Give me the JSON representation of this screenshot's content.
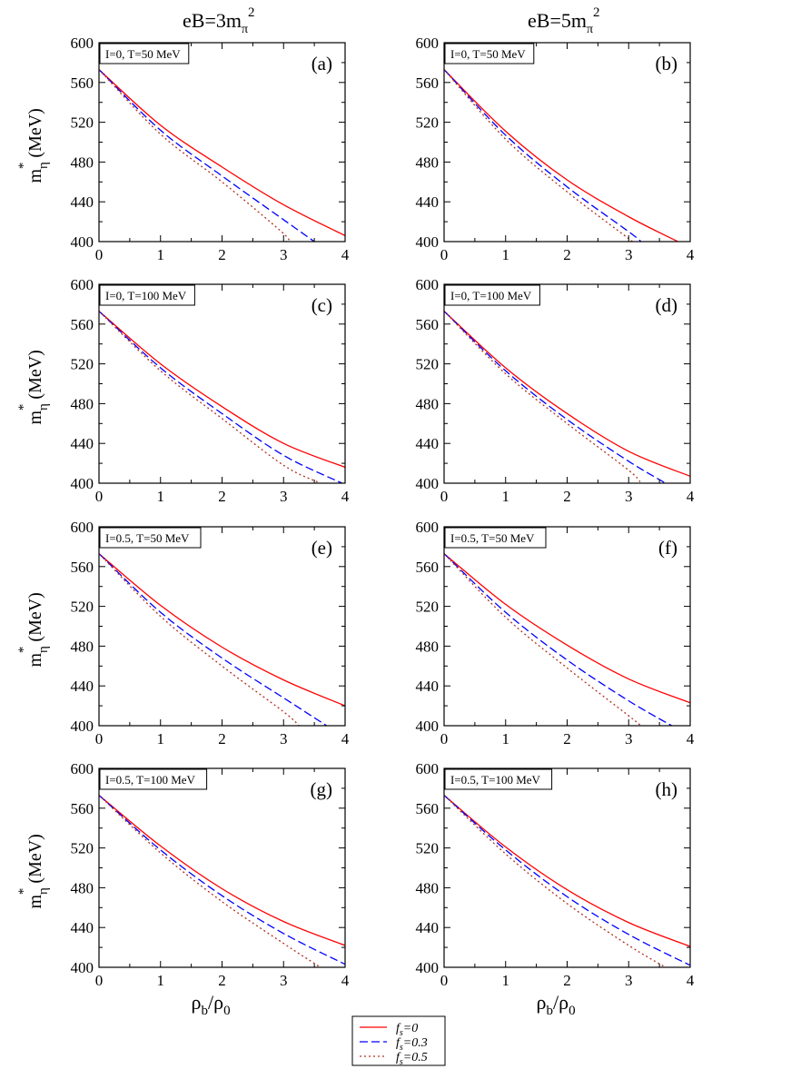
{
  "column_titles": [
    {
      "base": "eB=3m",
      "sub": "π",
      "sup": "2"
    },
    {
      "base": "eB=5m",
      "sub": "π",
      "sup": "2"
    }
  ],
  "ylabel": {
    "base": "m",
    "sub": "η",
    "sup": "*",
    "unit": "(MeV)"
  },
  "xlabel": {
    "base": "ρ",
    "sub1": "b",
    "mid": "/ρ",
    "sub2": "0"
  },
  "legend": [
    {
      "label": "f",
      "sub": "s",
      "rest": "=0",
      "color": "#ff0000",
      "style": "solid"
    },
    {
      "label": "f",
      "sub": "s",
      "rest": "=0.3",
      "color": "#0000ff",
      "style": "dashed"
    },
    {
      "label": "f",
      "sub": "s",
      "rest": "=0.5",
      "color": "#b03020",
      "style": "dotted"
    }
  ],
  "chart_data": [
    {
      "type": "line",
      "panel": "(a)",
      "tag": "I=0, T=50 MeV",
      "xlim": [
        0,
        4
      ],
      "ylim": [
        400,
        600
      ],
      "xticks": [
        "0",
        "1",
        "2",
        "3",
        "4"
      ],
      "yticks": [
        "400",
        "440",
        "480",
        "520",
        "560",
        "600"
      ],
      "series": [
        {
          "name": "fs=0",
          "x": [
            0,
            1,
            2,
            3,
            4
          ],
          "y": [
            573,
            517,
            475,
            437,
            406
          ]
        },
        {
          "name": "fs=0.3",
          "x": [
            0,
            1,
            2,
            3,
            3.5
          ],
          "y": [
            573,
            512,
            466,
            422,
            400
          ]
        },
        {
          "name": "fs=0.5",
          "x": [
            0,
            1,
            2,
            3,
            3.05
          ],
          "y": [
            573,
            508,
            460,
            408,
            400
          ]
        }
      ]
    },
    {
      "type": "line",
      "panel": "(b)",
      "tag": "I=0, T=50 MeV",
      "xlim": [
        0,
        4
      ],
      "ylim": [
        400,
        600
      ],
      "xticks": [
        "0",
        "1",
        "2",
        "3",
        "4"
      ],
      "yticks": [
        "400",
        "440",
        "480",
        "520",
        "560",
        "600"
      ],
      "series": [
        {
          "name": "fs=0",
          "x": [
            0,
            1,
            2,
            3,
            3.8
          ],
          "y": [
            573,
            511,
            462,
            425,
            400
          ]
        },
        {
          "name": "fs=0.3",
          "x": [
            0,
            1,
            2,
            3,
            3.2
          ],
          "y": [
            573,
            507,
            455,
            410,
            400
          ]
        },
        {
          "name": "fs=0.5",
          "x": [
            0,
            1,
            2,
            3,
            3.05
          ],
          "y": [
            573,
            503,
            450,
            403,
            400
          ]
        }
      ]
    },
    {
      "type": "line",
      "panel": "(c)",
      "tag": "I=0, T=100 MeV",
      "xlim": [
        0,
        4
      ],
      "ylim": [
        400,
        600
      ],
      "xticks": [
        "0",
        "1",
        "2",
        "3",
        "4"
      ],
      "yticks": [
        "400",
        "440",
        "480",
        "520",
        "560",
        "600"
      ],
      "series": [
        {
          "name": "fs=0",
          "x": [
            0,
            1,
            2,
            3,
            4
          ],
          "y": [
            573,
            520,
            477,
            440,
            416
          ]
        },
        {
          "name": "fs=0.3",
          "x": [
            0,
            1,
            2,
            3,
            3.95
          ],
          "y": [
            573,
            516,
            470,
            428,
            400
          ]
        },
        {
          "name": "fs=0.5",
          "x": [
            0,
            1,
            2,
            3,
            3.6
          ],
          "y": [
            573,
            513,
            465,
            418,
            400
          ]
        }
      ]
    },
    {
      "type": "line",
      "panel": "(d)",
      "tag": "I=0, T=100 MeV",
      "xlim": [
        0,
        4
      ],
      "ylim": [
        400,
        600
      ],
      "xticks": [
        "0",
        "1",
        "2",
        "3",
        "4"
      ],
      "yticks": [
        "400",
        "440",
        "480",
        "520",
        "560",
        "600"
      ],
      "series": [
        {
          "name": "fs=0",
          "x": [
            0,
            1,
            2,
            3,
            4
          ],
          "y": [
            573,
            516,
            470,
            432,
            407
          ]
        },
        {
          "name": "fs=0.3",
          "x": [
            0,
            1,
            2,
            3,
            3.6
          ],
          "y": [
            573,
            513,
            464,
            422,
            400
          ]
        },
        {
          "name": "fs=0.5",
          "x": [
            0,
            1,
            2,
            3,
            3.2
          ],
          "y": [
            573,
            510,
            460,
            413,
            400
          ]
        }
      ]
    },
    {
      "type": "line",
      "panel": "(e)",
      "tag": "I=0.5, T=50 MeV",
      "xlim": [
        0,
        4
      ],
      "ylim": [
        400,
        600
      ],
      "xticks": [
        "0",
        "1",
        "2",
        "3",
        "4"
      ],
      "yticks": [
        "400",
        "440",
        "480",
        "520",
        "560",
        "600"
      ],
      "series": [
        {
          "name": "fs=0",
          "x": [
            0,
            1,
            2,
            3,
            4
          ],
          "y": [
            573,
            521,
            479,
            446,
            420
          ]
        },
        {
          "name": "fs=0.3",
          "x": [
            0,
            1,
            2,
            3,
            3.7
          ],
          "y": [
            573,
            514,
            468,
            428,
            400
          ]
        },
        {
          "name": "fs=0.5",
          "x": [
            0,
            1,
            2,
            3,
            3.25
          ],
          "y": [
            573,
            510,
            460,
            414,
            400
          ]
        }
      ]
    },
    {
      "type": "line",
      "panel": "(f)",
      "tag": "I=0.5, T=50 MeV",
      "xlim": [
        0,
        4
      ],
      "ylim": [
        400,
        600
      ],
      "xticks": [
        "0",
        "1",
        "2",
        "3",
        "4"
      ],
      "yticks": [
        "400",
        "440",
        "480",
        "520",
        "560",
        "600"
      ],
      "series": [
        {
          "name": "fs=0",
          "x": [
            0,
            1,
            2,
            3,
            4
          ],
          "y": [
            573,
            522,
            481,
            447,
            423
          ]
        },
        {
          "name": "fs=0.3",
          "x": [
            0,
            1,
            2,
            3,
            3.7
          ],
          "y": [
            573,
            514,
            466,
            425,
            400
          ]
        },
        {
          "name": "fs=0.5",
          "x": [
            0,
            1,
            2,
            3,
            3.2
          ],
          "y": [
            573,
            509,
            458,
            410,
            400
          ]
        }
      ]
    },
    {
      "type": "line",
      "panel": "(g)",
      "tag": "I=0.5, T=100 MeV",
      "xlim": [
        0,
        4
      ],
      "ylim": [
        400,
        600
      ],
      "xticks": [
        "0",
        "1",
        "2",
        "3",
        "4"
      ],
      "yticks": [
        "400",
        "440",
        "480",
        "520",
        "560",
        "600"
      ],
      "series": [
        {
          "name": "fs=0",
          "x": [
            0,
            1,
            2,
            3,
            4
          ],
          "y": [
            573,
            522,
            479,
            446,
            422
          ]
        },
        {
          "name": "fs=0.3",
          "x": [
            0,
            1,
            2,
            3,
            4
          ],
          "y": [
            573,
            518,
            472,
            434,
            403
          ]
        },
        {
          "name": "fs=0.5",
          "x": [
            0,
            1,
            2,
            3,
            3.6
          ],
          "y": [
            573,
            515,
            466,
            424,
            400
          ]
        }
      ]
    },
    {
      "type": "line",
      "panel": "(h)",
      "tag": "I=0.5, T=100 MeV",
      "xlim": [
        0,
        4
      ],
      "ylim": [
        400,
        600
      ],
      "xticks": [
        "0",
        "1",
        "2",
        "3",
        "4"
      ],
      "yticks": [
        "400",
        "440",
        "480",
        "520",
        "560",
        "600"
      ],
      "series": [
        {
          "name": "fs=0",
          "x": [
            0,
            1,
            2,
            3,
            4
          ],
          "y": [
            573,
            521,
            478,
            445,
            421
          ]
        },
        {
          "name": "fs=0.3",
          "x": [
            0,
            1,
            2,
            3,
            4
          ],
          "y": [
            573,
            518,
            471,
            433,
            402
          ]
        },
        {
          "name": "fs=0.5",
          "x": [
            0,
            1,
            2,
            3,
            3.6
          ],
          "y": [
            573,
            514,
            464,
            422,
            400
          ]
        }
      ]
    }
  ]
}
